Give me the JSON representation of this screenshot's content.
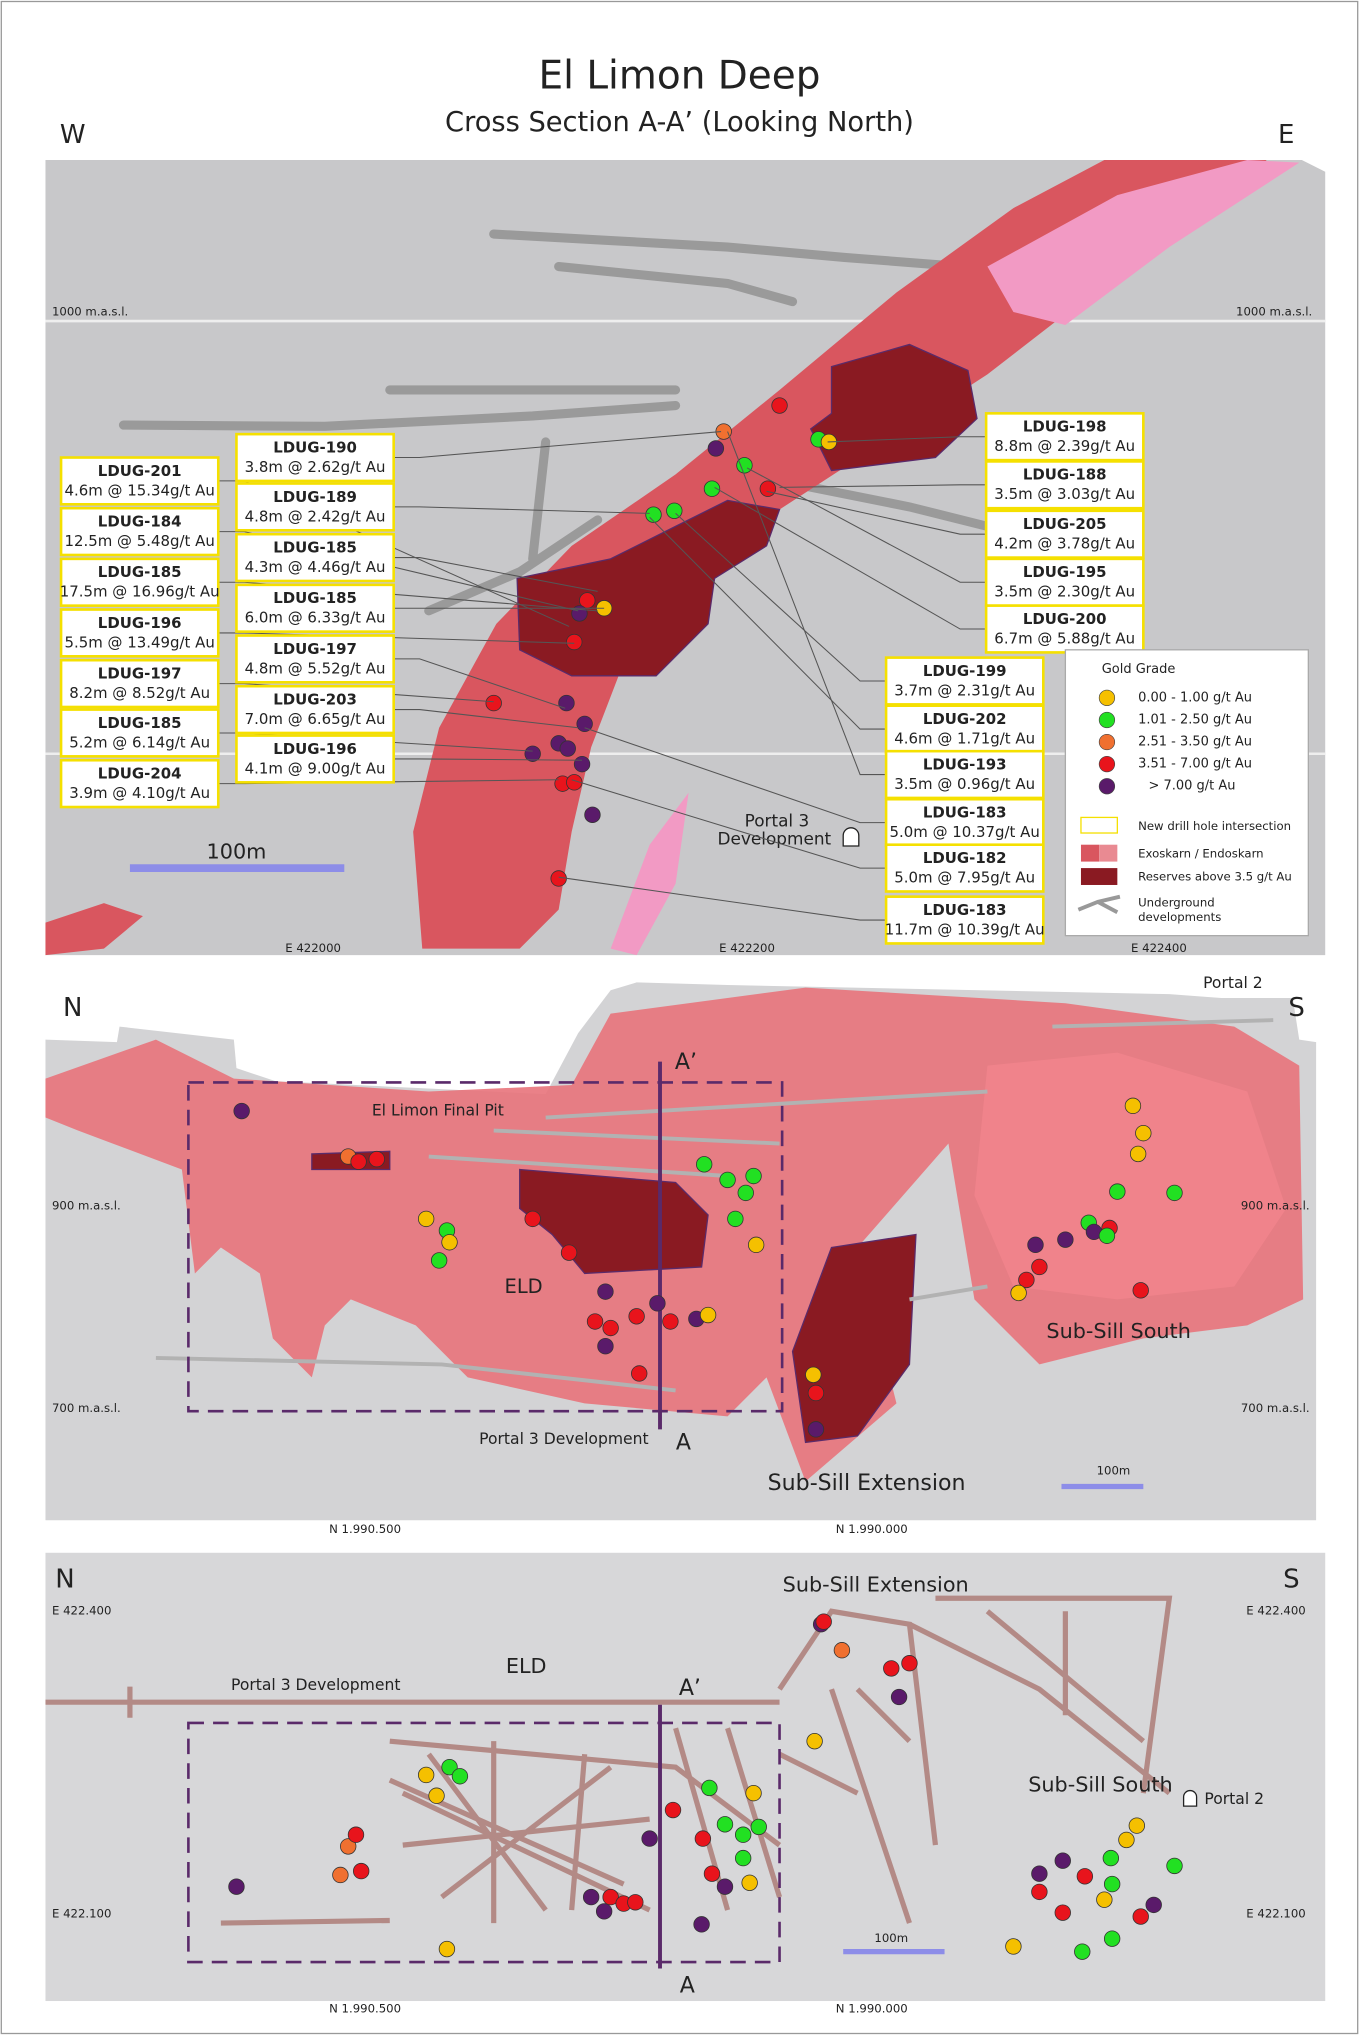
{
  "header": {
    "title": "El Limon Deep",
    "subtitle": "Cross Section A-A’ (Looking North)"
  },
  "section": {
    "west": "W",
    "east": "E",
    "elevations": [
      "1000 m.a.s.l.",
      "1000 m.a.s.l."
    ],
    "eastings": [
      "E 422000",
      "E 422200",
      "E 422400"
    ],
    "scale": "100m",
    "portal": [
      "Portal 3",
      "Development"
    ],
    "intersections": [
      {
        "hole": "LDUG-201",
        "result": "4.6m @ 15.34g/t Au"
      },
      {
        "hole": "LDUG-184",
        "result": "12.5m @ 5.48g/t Au"
      },
      {
        "hole": "LDUG-185",
        "result": "17.5m @ 16.96g/t Au"
      },
      {
        "hole": "LDUG-196",
        "result": "5.5m @ 13.49g/t Au"
      },
      {
        "hole": "LDUG-197",
        "result": "8.2m @ 8.52g/t Au"
      },
      {
        "hole": "LDUG-185",
        "result": "5.2m @ 6.14g/t Au"
      },
      {
        "hole": "LDUG-204",
        "result": "3.9m @ 4.10g/t Au"
      },
      {
        "hole": "LDUG-190",
        "result": "3.8m @ 2.62g/t Au"
      },
      {
        "hole": "LDUG-189",
        "result": "4.8m @ 2.42g/t Au"
      },
      {
        "hole": "LDUG-185",
        "result": "4.3m @ 4.46g/t Au"
      },
      {
        "hole": "LDUG-185",
        "result": "6.0m @ 6.33g/t Au"
      },
      {
        "hole": "LDUG-197",
        "result": "4.8m @ 5.52g/t Au"
      },
      {
        "hole": "LDUG-203",
        "result": "7.0m @ 6.65g/t Au"
      },
      {
        "hole": "LDUG-196",
        "result": "4.1m @ 9.00g/t Au"
      },
      {
        "hole": "LDUG-198",
        "result": "8.8m @ 2.39g/t Au"
      },
      {
        "hole": "LDUG-188",
        "result": "3.5m @ 3.03g/t Au"
      },
      {
        "hole": "LDUG-205",
        "result": "4.2m @ 3.78g/t Au"
      },
      {
        "hole": "LDUG-195",
        "result": "3.5m @ 2.30g/t Au"
      },
      {
        "hole": "LDUG-200",
        "result": "6.7m @ 5.88g/t Au"
      },
      {
        "hole": "LDUG-199",
        "result": "3.7m @ 2.31g/t Au"
      },
      {
        "hole": "LDUG-202",
        "result": "4.6m @ 1.71g/t Au"
      },
      {
        "hole": "LDUG-193",
        "result": "3.5m @ 0.96g/t Au"
      },
      {
        "hole": "LDUG-183",
        "result": "5.0m @ 10.37g/t Au"
      },
      {
        "hole": "LDUG-182",
        "result": "5.0m @ 7.95g/t Au"
      },
      {
        "hole": "LDUG-183",
        "result": "11.7m @ 10.39g/t Au"
      }
    ]
  },
  "legend": {
    "title": "Gold Grade",
    "grades": [
      "0.00 - 1.00 g/t Au",
      "1.01 - 2.50 g/t Au",
      "2.51 - 3.50 g/t Au",
      "3.51 - 7.00 g/t Au",
      "> 7.00 g/t Au"
    ],
    "new_intersection": "New drill hole intersection",
    "skarn": "Exoskarn / Endoskarn",
    "reserves": "Reserves above 3.5 g/t Au",
    "developments": [
      "Underground",
      "developments"
    ]
  },
  "long_section": {
    "north": "N",
    "south": "S",
    "a_prime": "A’",
    "a": "A",
    "pit": "El Limon Final Pit",
    "eld": "ELD",
    "sub_sill_south": "Sub-Sill South",
    "sub_sill_extension": "Sub-Sill Extension",
    "portal_3": "Portal 3  Development",
    "portal_2": "Portal 2",
    "elevations": [
      "900 m.a.s.l.",
      "900 m.a.s.l.",
      "700 m.a.s.l.",
      "700 m.a.s.l."
    ],
    "northings": [
      "N 1.990.500",
      "N 1.990.000"
    ],
    "scale": "100m"
  },
  "plan": {
    "north": "N",
    "south": "S",
    "sub_sill_extension": "Sub-Sill Extension",
    "eld": "ELD",
    "portal_3": "Portal 3  Development",
    "a_prime": "A’",
    "a": "A",
    "sub_sill_south": "Sub-Sill South",
    "portal_2": "Portal 2",
    "eastings": [
      "E 422.400",
      "E 422.400",
      "E 422.100",
      "E 422.100"
    ],
    "northings": [
      "N 1.990.500",
      "N 1.990.000"
    ],
    "scale": "100m"
  }
}
